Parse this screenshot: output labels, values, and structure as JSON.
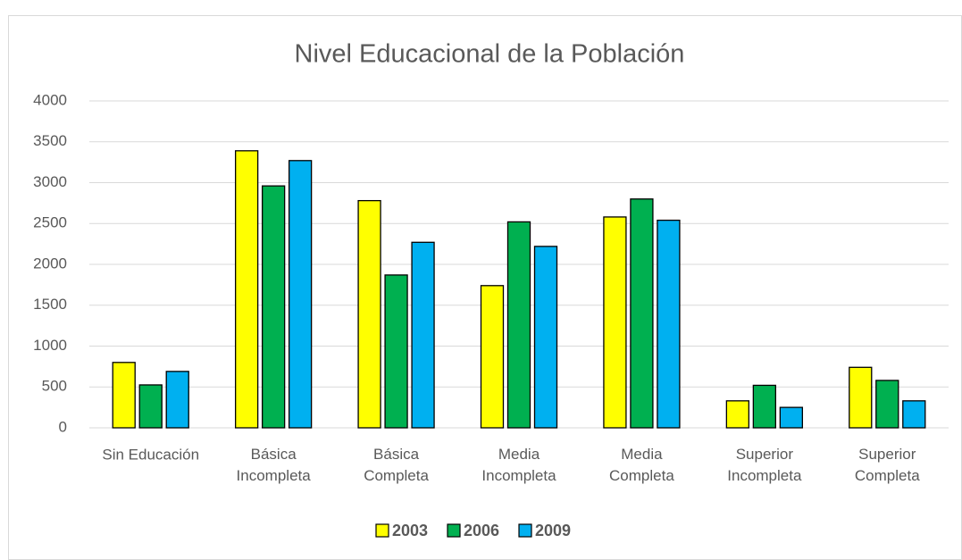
{
  "chart_data": {
    "type": "bar",
    "title": "Nivel Educacional de la Población",
    "categories": [
      "Sin Educación",
      "Básica\nIncompleta",
      "Básica\nCompleta",
      "Media\nIncompleta",
      "Media\nCompleta",
      "Superior\nIncompleta",
      "Superior\nCompleta"
    ],
    "series": [
      {
        "name": "2003",
        "color": "#ffff00",
        "values": [
          800,
          3390,
          2780,
          1740,
          2580,
          330,
          740
        ]
      },
      {
        "name": "2006",
        "color": "#00b050",
        "values": [
          525,
          2960,
          1870,
          2520,
          2800,
          520,
          580
        ]
      },
      {
        "name": "2009",
        "color": "#00b0f0",
        "values": [
          690,
          3270,
          2270,
          2220,
          2540,
          250,
          330
        ]
      }
    ],
    "ylim": [
      0,
      4000
    ],
    "yticks": [
      0,
      500,
      1000,
      1500,
      2000,
      2500,
      3000,
      3500,
      4000
    ],
    "grid": true,
    "legend": "bottom"
  }
}
